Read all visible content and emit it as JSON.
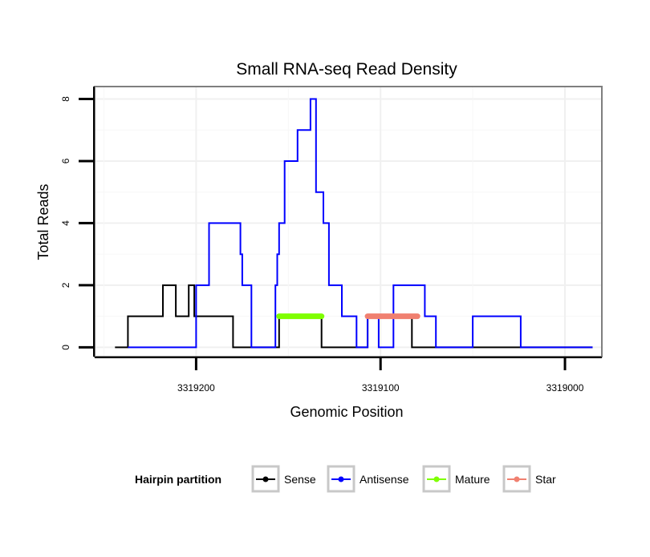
{
  "chart_data": {
    "type": "line",
    "title": "Small RNA-seq Read Density",
    "xlabel": "Genomic Position",
    "ylabel": "Total Reads",
    "xlim": [
      3319255,
      3318980
    ],
    "ylim": [
      -0.3,
      8.4
    ],
    "x_reversed": true,
    "grid": true,
    "x_ticks": [
      3319200,
      3319100,
      3319000
    ],
    "x_tick_labels": [
      "3319200",
      "3319100",
      "3319000"
    ],
    "y_ticks": [
      0,
      2,
      4,
      6,
      8
    ],
    "y_tick_labels": [
      "0",
      "2",
      "4",
      "6",
      "8"
    ],
    "legend": {
      "title": "Hairpin partition",
      "position": "bottom",
      "entries": [
        "Sense",
        "Antisense",
        "Mature",
        "Star"
      ]
    },
    "series": [
      {
        "name": "Sense",
        "color": "#000000",
        "width": 2,
        "step": true,
        "points": [
          [
            3319244,
            0
          ],
          [
            3319237,
            1
          ],
          [
            3319218,
            2
          ],
          [
            3319211,
            1
          ],
          [
            3319204,
            2
          ],
          [
            3319201,
            1
          ],
          [
            3319180,
            0
          ],
          [
            3319155,
            1
          ],
          [
            3319132,
            0
          ],
          [
            3319107,
            1
          ],
          [
            3319083,
            0
          ],
          [
            3318985,
            0
          ]
        ]
      },
      {
        "name": "Antisense",
        "color": "#0000ff",
        "width": 2,
        "step": true,
        "points": [
          [
            3319237,
            0
          ],
          [
            3319200,
            2
          ],
          [
            3319193,
            4
          ],
          [
            3319176,
            3
          ],
          [
            3319175,
            2
          ],
          [
            3319170,
            0
          ],
          [
            3319157,
            2
          ],
          [
            3319156,
            3
          ],
          [
            3319155,
            4
          ],
          [
            3319152,
            6
          ],
          [
            3319145,
            7
          ],
          [
            3319138,
            8
          ],
          [
            3319135,
            5
          ],
          [
            3319131,
            4
          ],
          [
            3319128,
            2
          ],
          [
            3319121,
            1
          ],
          [
            3319113,
            0
          ],
          [
            3319107,
            1
          ],
          [
            3319101,
            0
          ],
          [
            3319093,
            2
          ],
          [
            3319076,
            1
          ],
          [
            3319070,
            0
          ],
          [
            3319050,
            1
          ],
          [
            3319024,
            0
          ],
          [
            3318985,
            0
          ]
        ]
      },
      {
        "name": "Mature",
        "color": "#7fff00",
        "width": 7,
        "step": false,
        "points": [
          [
            3319155,
            1
          ],
          [
            3319132,
            1
          ]
        ]
      },
      {
        "name": "Star",
        "color": "#f08070",
        "width": 7,
        "step": false,
        "points": [
          [
            3319107,
            1
          ],
          [
            3319080,
            1
          ]
        ]
      }
    ]
  }
}
